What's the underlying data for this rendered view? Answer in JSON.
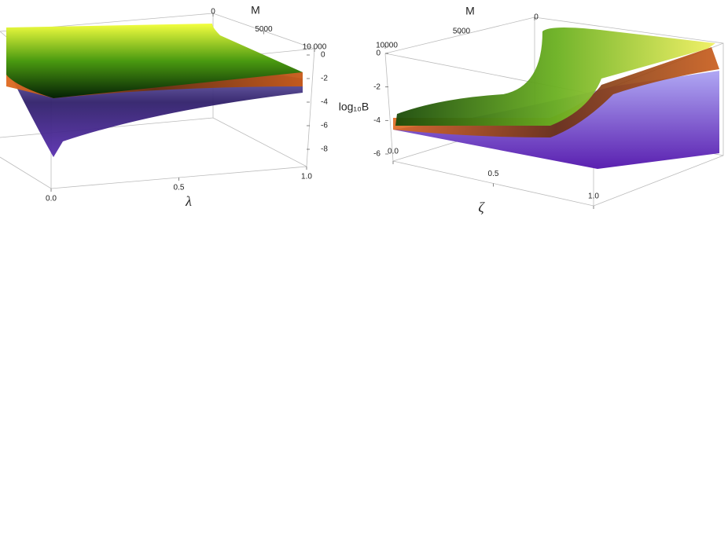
{
  "chart_data": [
    {
      "type": "surface",
      "x_label": "λ",
      "y_label": "M",
      "z_label": "log₁₀B",
      "xlim": [
        0,
        1
      ],
      "xticks": [
        {
          "value": 0,
          "label": "0.0"
        },
        0.5,
        {
          "value": 1,
          "label": "1.0"
        }
      ],
      "ylim": [
        0,
        10000
      ],
      "yticks": [
        0,
        5000,
        {
          "value": 10000,
          "label": "10 000"
        }
      ],
      "zlim": [
        -9,
        0
      ],
      "zticks": [
        0,
        -2,
        -4,
        -6,
        -8
      ]
    },
    {
      "type": "surface",
      "x_label": "ζ",
      "y_label": "M",
      "xlim": [
        0,
        1
      ],
      "xticks": [
        {
          "value": 0,
          "label": "0.0"
        },
        0.5,
        {
          "value": 1,
          "label": "1.0"
        }
      ],
      "ylim": [
        0,
        10000
      ],
      "yticks": [
        0,
        5000,
        {
          "value": 10000,
          "label": "10000"
        }
      ],
      "zlim": [
        -6,
        0
      ],
      "zticks": [
        0,
        -2,
        -4,
        -6
      ]
    }
  ]
}
